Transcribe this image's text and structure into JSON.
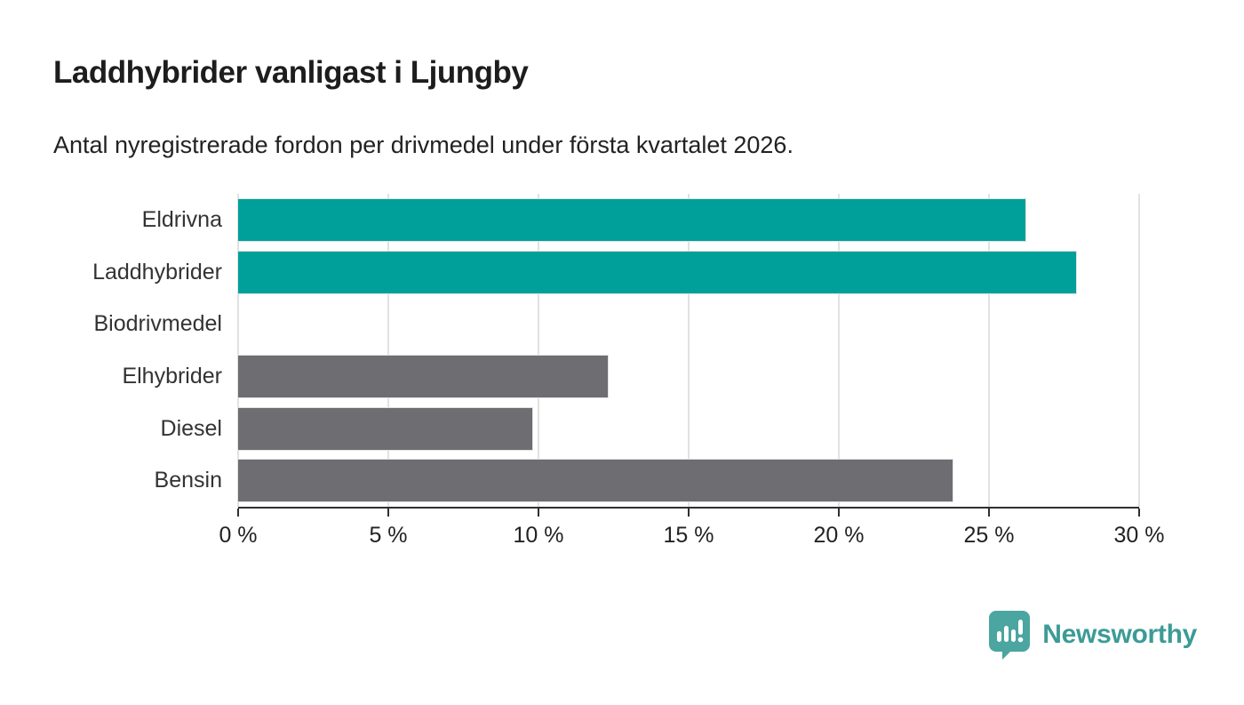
{
  "chart_data": {
    "type": "bar",
    "orientation": "horizontal",
    "title": "Laddhybrider vanligast i Ljungby",
    "subtitle": "Antal nyregistrerade fordon per drivmedel under första kvartalet 2026.",
    "categories": [
      "Eldrivna",
      "Laddhybrider",
      "Biodrivmedel",
      "Elhybrider",
      "Diesel",
      "Bensin"
    ],
    "values": [
      26.2,
      27.9,
      0,
      12.3,
      9.8,
      23.8
    ],
    "unit": "%",
    "bar_colors": [
      "#00a09a",
      "#00a09a",
      "#6d6d72",
      "#6d6d72",
      "#6d6d72",
      "#6d6d72"
    ],
    "xlabel": "",
    "ylabel": "",
    "xlim": [
      0,
      30
    ],
    "x_tick_values": [
      0,
      5,
      10,
      15,
      20,
      25,
      30
    ],
    "x_tick_labels": [
      "0 %",
      "5 %",
      "10 %",
      "15 %",
      "20 %",
      "25 %",
      "30 %"
    ],
    "grid": true,
    "legend": false
  },
  "colors": {
    "highlight": "#00a09a",
    "default_bar": "#6d6d72",
    "gridline": "#e2e2e2",
    "axis": "#2f2f2f",
    "label_text": "#333333",
    "logo_icon": "#4ba5a0",
    "logo_text": "#3c9b96"
  },
  "branding": {
    "logo_text": "Newsworthy"
  }
}
